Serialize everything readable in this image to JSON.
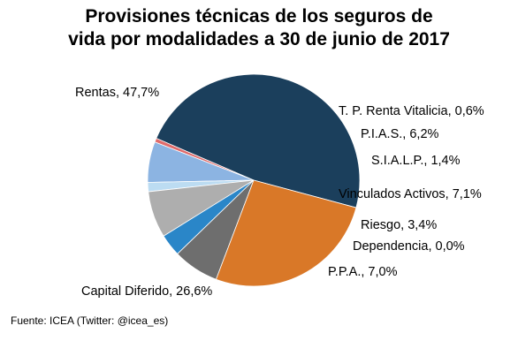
{
  "chart_data": {
    "type": "pie",
    "title_line1": "Provisiones técnicas de los seguros de",
    "title_line2": "vida por modalidades a 30 de junio de 2017",
    "slices": [
      {
        "name": "Rentas",
        "value": 47.7,
        "label": "Rentas,  47,7%",
        "color": "#1b3f5c"
      },
      {
        "name": "T. P. Renta Vitalicia",
        "value": 0.6,
        "label": "T. P. Renta  Vitalicia, 0,6%",
        "color": "#e06b6b"
      },
      {
        "name": "P.I.A.S.",
        "value": 6.2,
        "label": "P.I.A.S.,  6,2%",
        "color": "#8cb4e2"
      },
      {
        "name": "S.I.A.L.P.",
        "value": 1.4,
        "label": "S.I.A.L.P.,  1,4%",
        "color": "#bcdcf2"
      },
      {
        "name": "Vinculados Activos",
        "value": 7.1,
        "label": "Vinculados Activos, 7,1%",
        "color": "#aeaeae"
      },
      {
        "name": "Riesgo",
        "value": 3.4,
        "label": "Riesgo, 3,4%",
        "color": "#2a86c8"
      },
      {
        "name": "Dependencia",
        "value": 0.0,
        "label": "Dependencia, 0,0%",
        "color": "#1e5f95"
      },
      {
        "name": "P.P.A.",
        "value": 7.0,
        "label": "P.P.A., 7,0%",
        "color": "#6e6e6e"
      },
      {
        "name": "Capital Diferido",
        "value": 26.6,
        "label": "Capital Diferido, 26,6%",
        "color": "#d97828"
      }
    ]
  },
  "source": "Fuente: ICEA (Twitter:  @icea_es)"
}
